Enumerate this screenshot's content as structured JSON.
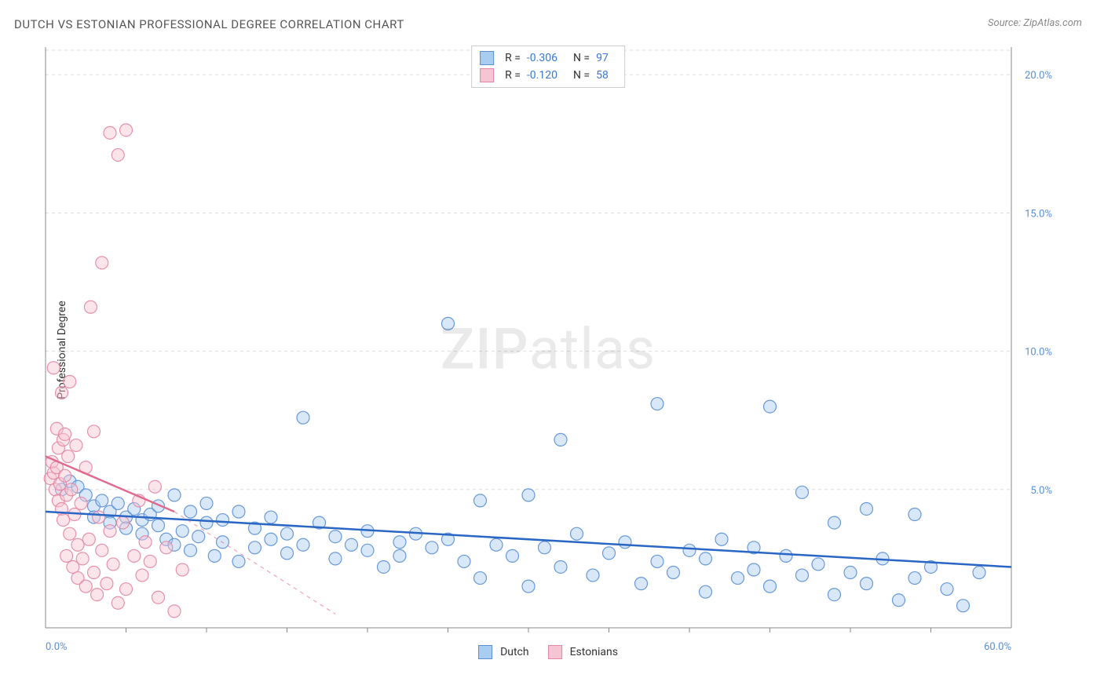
{
  "title": "DUTCH VS ESTONIAN PROFESSIONAL DEGREE CORRELATION CHART",
  "source": "Source: ZipAtlas.com",
  "y_label": "Professional Degree",
  "watermark": {
    "bold": "ZIP",
    "light": "atlas"
  },
  "chart": {
    "type": "scatter",
    "background": "#ffffff",
    "grid_color": "#dddddd",
    "axis_color": "#888888",
    "tick_color": "#5b8fd6",
    "xlim": [
      0,
      60
    ],
    "ylim": [
      0,
      21
    ],
    "x_ticks": [
      0,
      60
    ],
    "x_tick_labels": [
      "0.0%",
      "60.0%"
    ],
    "x_minor_ticks": [
      5,
      10,
      15,
      20,
      25,
      30,
      35,
      40,
      45,
      50,
      55
    ],
    "y_ticks": [
      5,
      10,
      15,
      20
    ],
    "y_tick_labels": [
      "5.0%",
      "10.0%",
      "15.0%",
      "20.0%"
    ],
    "marker_radius": 8,
    "series": [
      {
        "name": "Dutch",
        "fill": "#a9cdf0",
        "stroke": "#5b8fd6",
        "R": "-0.306",
        "N": "97",
        "trend_solid": {
          "x1": 0,
          "y1": 4.2,
          "x2": 60,
          "y2": 2.2,
          "color": "#2a66c4"
        },
        "points": [
          [
            1,
            5.0
          ],
          [
            1.5,
            5.3
          ],
          [
            2,
            5.1
          ],
          [
            2.5,
            4.8
          ],
          [
            3,
            4.4
          ],
          [
            3,
            4.0
          ],
          [
            3.5,
            4.6
          ],
          [
            4,
            4.2
          ],
          [
            4,
            3.8
          ],
          [
            4.5,
            4.5
          ],
          [
            5,
            4.0
          ],
          [
            5,
            3.6
          ],
          [
            5.5,
            4.3
          ],
          [
            6,
            3.9
          ],
          [
            6,
            3.4
          ],
          [
            6.5,
            4.1
          ],
          [
            7,
            3.7
          ],
          [
            7,
            4.4
          ],
          [
            7.5,
            3.2
          ],
          [
            8,
            4.8
          ],
          [
            8,
            3.0
          ],
          [
            8.5,
            3.5
          ],
          [
            9,
            4.2
          ],
          [
            9,
            2.8
          ],
          [
            9.5,
            3.3
          ],
          [
            10,
            3.8
          ],
          [
            10,
            4.5
          ],
          [
            10.5,
            2.6
          ],
          [
            11,
            3.1
          ],
          [
            11,
            3.9
          ],
          [
            12,
            4.2
          ],
          [
            12,
            2.4
          ],
          [
            13,
            3.6
          ],
          [
            13,
            2.9
          ],
          [
            14,
            3.2
          ],
          [
            14,
            4.0
          ],
          [
            15,
            2.7
          ],
          [
            15,
            3.4
          ],
          [
            16,
            7.6
          ],
          [
            16,
            3.0
          ],
          [
            17,
            3.8
          ],
          [
            18,
            2.5
          ],
          [
            18,
            3.3
          ],
          [
            19,
            3.0
          ],
          [
            20,
            2.8
          ],
          [
            20,
            3.5
          ],
          [
            21,
            2.2
          ],
          [
            22,
            3.1
          ],
          [
            22,
            2.6
          ],
          [
            23,
            3.4
          ],
          [
            24,
            2.9
          ],
          [
            25,
            11.0
          ],
          [
            25,
            3.2
          ],
          [
            26,
            2.4
          ],
          [
            27,
            4.6
          ],
          [
            27,
            1.8
          ],
          [
            28,
            3.0
          ],
          [
            29,
            2.6
          ],
          [
            30,
            4.8
          ],
          [
            30,
            1.5
          ],
          [
            31,
            2.9
          ],
          [
            32,
            6.8
          ],
          [
            32,
            2.2
          ],
          [
            33,
            3.4
          ],
          [
            34,
            1.9
          ],
          [
            35,
            2.7
          ],
          [
            36,
            3.1
          ],
          [
            37,
            1.6
          ],
          [
            38,
            8.1
          ],
          [
            38,
            2.4
          ],
          [
            39,
            2.0
          ],
          [
            40,
            2.8
          ],
          [
            41,
            1.3
          ],
          [
            41,
            2.5
          ],
          [
            42,
            3.2
          ],
          [
            43,
            1.8
          ],
          [
            44,
            2.1
          ],
          [
            44,
            2.9
          ],
          [
            45,
            8.0
          ],
          [
            45,
            1.5
          ],
          [
            46,
            2.6
          ],
          [
            47,
            4.9
          ],
          [
            47,
            1.9
          ],
          [
            48,
            2.3
          ],
          [
            49,
            3.8
          ],
          [
            49,
            1.2
          ],
          [
            50,
            2.0
          ],
          [
            51,
            4.3
          ],
          [
            51,
            1.6
          ],
          [
            52,
            2.5
          ],
          [
            53,
            1.0
          ],
          [
            54,
            4.1
          ],
          [
            54,
            1.8
          ],
          [
            55,
            2.2
          ],
          [
            56,
            1.4
          ],
          [
            57,
            0.8
          ],
          [
            58,
            2.0
          ]
        ]
      },
      {
        "name": "Estonians",
        "fill": "#f6c5d3",
        "stroke": "#e486a3",
        "R": "-0.120",
        "N": "58",
        "trend_solid": {
          "x1": 0,
          "y1": 6.2,
          "x2": 8,
          "y2": 4.2,
          "color": "#e06b8f"
        },
        "trend_dash": {
          "x1": 8,
          "y1": 4.2,
          "x2": 18,
          "y2": 0.5,
          "color": "#e06b8f"
        },
        "points": [
          [
            0.3,
            5.4
          ],
          [
            0.4,
            6.0
          ],
          [
            0.5,
            5.6
          ],
          [
            0.5,
            9.4
          ],
          [
            0.6,
            5.0
          ],
          [
            0.7,
            7.2
          ],
          [
            0.7,
            5.8
          ],
          [
            0.8,
            6.5
          ],
          [
            0.8,
            4.6
          ],
          [
            0.9,
            5.2
          ],
          [
            1.0,
            8.5
          ],
          [
            1.0,
            4.3
          ],
          [
            1.1,
            6.8
          ],
          [
            1.1,
            3.9
          ],
          [
            1.2,
            5.5
          ],
          [
            1.2,
            7.0
          ],
          [
            1.3,
            4.8
          ],
          [
            1.3,
            2.6
          ],
          [
            1.4,
            6.2
          ],
          [
            1.5,
            3.4
          ],
          [
            1.5,
            8.9
          ],
          [
            1.6,
            5.0
          ],
          [
            1.7,
            2.2
          ],
          [
            1.8,
            4.1
          ],
          [
            1.9,
            6.6
          ],
          [
            2.0,
            3.0
          ],
          [
            2.0,
            1.8
          ],
          [
            2.2,
            4.5
          ],
          [
            2.3,
            2.5
          ],
          [
            2.5,
            5.8
          ],
          [
            2.5,
            1.5
          ],
          [
            2.7,
            3.2
          ],
          [
            2.8,
            11.6
          ],
          [
            3.0,
            2.0
          ],
          [
            3.0,
            7.1
          ],
          [
            3.2,
            1.2
          ],
          [
            3.3,
            4.0
          ],
          [
            3.5,
            13.2
          ],
          [
            3.5,
            2.8
          ],
          [
            3.8,
            1.6
          ],
          [
            4.0,
            3.5
          ],
          [
            4.0,
            17.9
          ],
          [
            4.2,
            2.3
          ],
          [
            4.5,
            17.1
          ],
          [
            4.5,
            0.9
          ],
          [
            4.8,
            3.8
          ],
          [
            5.0,
            1.4
          ],
          [
            5.0,
            18.0
          ],
          [
            5.5,
            2.6
          ],
          [
            5.8,
            4.6
          ],
          [
            6.0,
            1.9
          ],
          [
            6.2,
            3.1
          ],
          [
            6.5,
            2.4
          ],
          [
            6.8,
            5.1
          ],
          [
            7.0,
            1.1
          ],
          [
            7.5,
            2.9
          ],
          [
            8.0,
            0.6
          ],
          [
            8.5,
            2.1
          ]
        ]
      }
    ]
  },
  "legend_bottom": [
    {
      "label": "Dutch",
      "fill": "#a9cdf0",
      "stroke": "#5b8fd6"
    },
    {
      "label": "Estonians",
      "fill": "#f6c5d3",
      "stroke": "#e486a3"
    }
  ]
}
